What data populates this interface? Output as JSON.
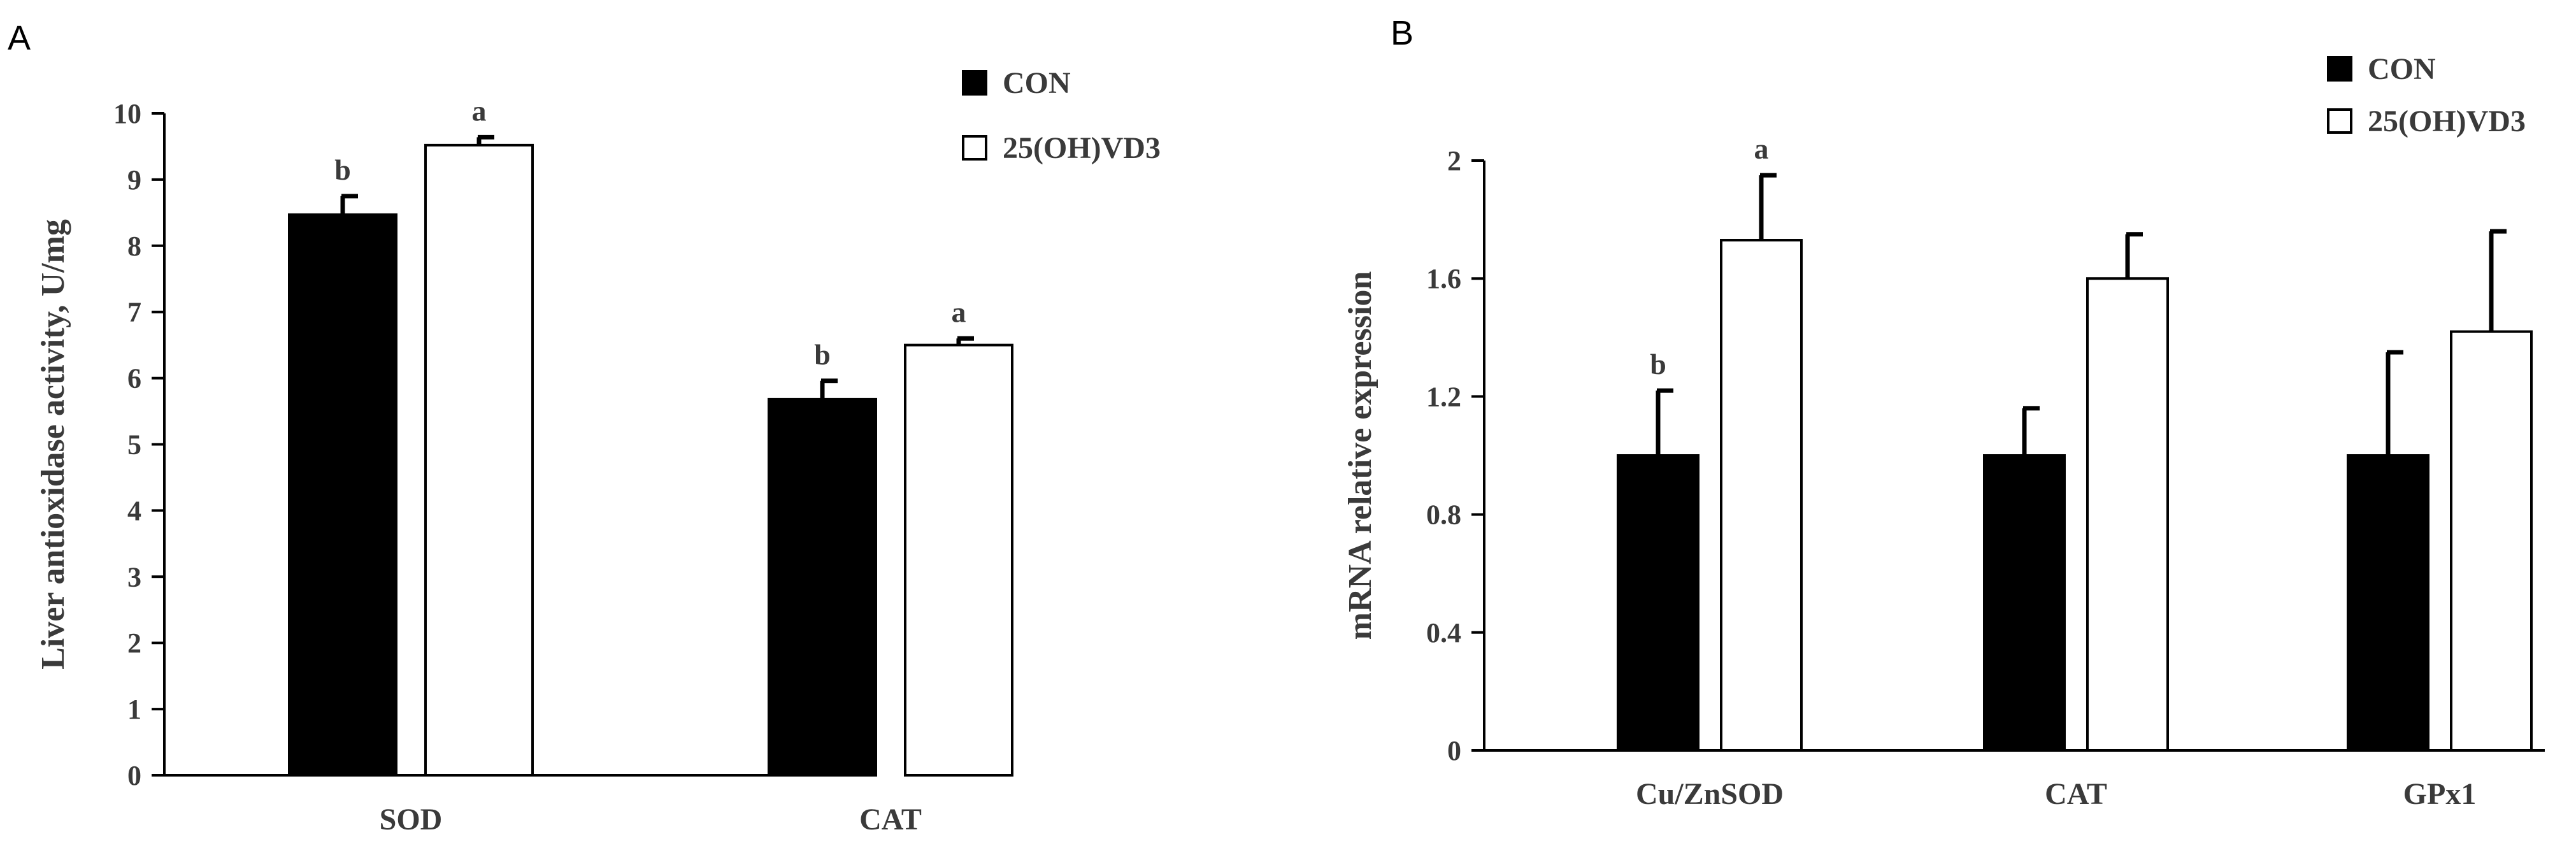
{
  "chart_data": [
    {
      "panel": "A",
      "type": "bar",
      "title": "",
      "xlabel": "",
      "ylabel": "Liver antioxidase activity, U/mg",
      "ylim": [
        0,
        10
      ],
      "yticks": [
        "0",
        "1",
        "2",
        "3",
        "4",
        "5",
        "6",
        "7",
        "8",
        "9",
        "10"
      ],
      "categories": [
        "SOD",
        "CAT"
      ],
      "series": [
        {
          "name": "CON",
          "fill": "#000000",
          "values": [
            8.47,
            5.68
          ],
          "errors": [
            0.28,
            0.28
          ],
          "sig": [
            "b",
            "b"
          ]
        },
        {
          "name": "25(OH)VD3",
          "fill": "#ffffff",
          "values": [
            9.52,
            6.5
          ],
          "errors": [
            0.12,
            0.1
          ],
          "sig": [
            "a",
            "a"
          ]
        }
      ],
      "legend": "top-right"
    },
    {
      "panel": "B",
      "type": "bar",
      "title": "",
      "xlabel": "",
      "ylabel": "mRNA relative expression",
      "ylim": [
        0,
        2
      ],
      "yticks": [
        "0",
        "0.4",
        "0.8",
        "1.2",
        "1.6",
        "2"
      ],
      "categories": [
        "Cu/ZnSOD",
        "CAT",
        "GPx1"
      ],
      "series": [
        {
          "name": "CON",
          "fill": "#000000",
          "values": [
            1.0,
            1.0,
            1.0
          ],
          "errors": [
            0.22,
            0.16,
            0.35
          ],
          "sig": [
            "b",
            "",
            ""
          ]
        },
        {
          "name": "25(OH)VD3",
          "fill": "#ffffff",
          "values": [
            1.73,
            1.6,
            1.42
          ],
          "errors": [
            0.22,
            0.15,
            0.34
          ],
          "sig": [
            "a",
            "",
            ""
          ]
        }
      ],
      "legend": "top-right"
    }
  ]
}
